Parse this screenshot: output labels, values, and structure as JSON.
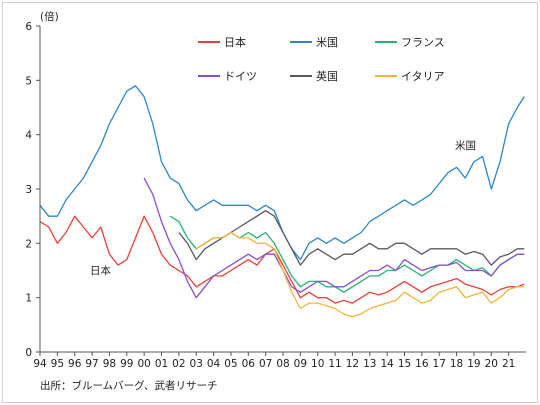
{
  "chart_data": {
    "type": "line",
    "y_unit": "(倍)",
    "ylim": [
      0,
      6
    ],
    "y_ticks": [
      "0",
      "1",
      "2",
      "3",
      "4",
      "5",
      "6"
    ],
    "x_ticks": [
      "94",
      "95",
      "96",
      "97",
      "98",
      "99",
      "00",
      "01",
      "02",
      "03",
      "04",
      "05",
      "06",
      "07",
      "08",
      "09",
      "10",
      "11",
      "12",
      "13",
      "14",
      "15",
      "16",
      "17",
      "18",
      "19",
      "20",
      "21"
    ],
    "xlim": [
      1994.0,
      2022.0
    ],
    "grid": false,
    "legend_position": "top-center",
    "source": "出所：ブルームバーグ、武者リサーチ",
    "annotations": [
      "日本",
      "米国"
    ],
    "series": [
      {
        "name": "日本",
        "color": "#e8413b",
        "x": [
          1994.0,
          1994.5,
          1995.0,
          1995.5,
          1996.0,
          1996.5,
          1997.0,
          1997.5,
          1998.0,
          1998.5,
          1999.0,
          1999.5,
          2000.0,
          2000.5,
          2001.0,
          2001.5,
          2002.0,
          2002.5,
          2003.0,
          2003.5,
          2004.0,
          2004.5,
          2005.0,
          2005.5,
          2006.0,
          2006.5,
          2007.0,
          2007.5,
          2008.0,
          2008.5,
          2009.0,
          2009.5,
          2010.0,
          2010.5,
          2011.0,
          2011.5,
          2012.0,
          2012.5,
          2013.0,
          2013.5,
          2014.0,
          2014.5,
          2015.0,
          2015.5,
          2016.0,
          2016.5,
          2017.0,
          2017.5,
          2018.0,
          2018.5,
          2019.0,
          2019.5,
          2020.0,
          2020.5,
          2021.0,
          2021.5,
          2021.9
        ],
        "values": [
          2.4,
          2.3,
          2.0,
          2.2,
          2.5,
          2.3,
          2.1,
          2.3,
          1.8,
          1.6,
          1.7,
          2.1,
          2.5,
          2.2,
          1.8,
          1.6,
          1.5,
          1.4,
          1.2,
          1.3,
          1.4,
          1.4,
          1.5,
          1.6,
          1.7,
          1.6,
          1.8,
          1.9,
          1.6,
          1.3,
          1.0,
          1.1,
          1.0,
          1.0,
          0.9,
          0.95,
          0.9,
          1.0,
          1.1,
          1.05,
          1.1,
          1.2,
          1.3,
          1.2,
          1.1,
          1.2,
          1.25,
          1.3,
          1.35,
          1.25,
          1.2,
          1.15,
          1.05,
          1.15,
          1.2,
          1.2,
          1.25
        ]
      },
      {
        "name": "米国",
        "color": "#2f86c9",
        "x": [
          1994.0,
          1994.5,
          1995.0,
          1995.5,
          1996.0,
          1996.5,
          1997.0,
          1997.5,
          1998.0,
          1998.5,
          1999.0,
          1999.5,
          2000.0,
          2000.5,
          2001.0,
          2001.5,
          2002.0,
          2002.5,
          2003.0,
          2003.5,
          2004.0,
          2004.5,
          2005.0,
          2005.5,
          2006.0,
          2006.5,
          2007.0,
          2007.5,
          2008.0,
          2008.5,
          2009.0,
          2009.5,
          2010.0,
          2010.5,
          2011.0,
          2011.5,
          2012.0,
          2012.5,
          2013.0,
          2013.5,
          2014.0,
          2014.5,
          2015.0,
          2015.5,
          2016.0,
          2016.5,
          2017.0,
          2017.5,
          2018.0,
          2018.5,
          2019.0,
          2019.5,
          2020.0,
          2020.5,
          2021.0,
          2021.5,
          2021.9
        ],
        "values": [
          2.7,
          2.5,
          2.5,
          2.8,
          3.0,
          3.2,
          3.5,
          3.8,
          4.2,
          4.5,
          4.8,
          4.9,
          4.7,
          4.2,
          3.5,
          3.2,
          3.1,
          2.8,
          2.6,
          2.7,
          2.8,
          2.7,
          2.7,
          2.7,
          2.7,
          2.6,
          2.7,
          2.6,
          2.2,
          1.9,
          1.7,
          2.0,
          2.1,
          2.0,
          2.1,
          2.0,
          2.1,
          2.2,
          2.4,
          2.5,
          2.6,
          2.7,
          2.8,
          2.7,
          2.8,
          2.9,
          3.1,
          3.3,
          3.4,
          3.2,
          3.5,
          3.6,
          3.0,
          3.5,
          4.2,
          4.5,
          4.7
        ]
      },
      {
        "name": "フランス",
        "color": "#27b36f",
        "x": [
          2001.5,
          2002.0,
          2002.5,
          2003.0,
          2003.5,
          2004.0,
          2004.5,
          2005.0,
          2005.5,
          2006.0,
          2006.5,
          2007.0,
          2007.5,
          2008.0,
          2008.5,
          2009.0,
          2009.5,
          2010.0,
          2010.5,
          2011.0,
          2011.5,
          2012.0,
          2012.5,
          2013.0,
          2013.5,
          2014.0,
          2014.5,
          2015.0,
          2015.5,
          2016.0,
          2016.5,
          2017.0,
          2017.5,
          2018.0,
          2018.5,
          2019.0,
          2019.5,
          2020.0,
          2020.5,
          2021.0,
          2021.5,
          2021.9
        ],
        "values": [
          2.5,
          2.4,
          2.1,
          1.9,
          2.0,
          2.1,
          2.1,
          2.2,
          2.1,
          2.2,
          2.1,
          2.2,
          2.0,
          1.7,
          1.4,
          1.2,
          1.3,
          1.3,
          1.2,
          1.2,
          1.1,
          1.2,
          1.3,
          1.4,
          1.4,
          1.5,
          1.5,
          1.6,
          1.5,
          1.4,
          1.5,
          1.6,
          1.6,
          1.7,
          1.6,
          1.5,
          1.55,
          1.4,
          1.6,
          1.7,
          1.8,
          1.8
        ]
      },
      {
        "name": "ドイツ",
        "color": "#8a4fc8",
        "x": [
          2000.0,
          2000.5,
          2001.0,
          2001.5,
          2002.0,
          2002.5,
          2003.0,
          2003.5,
          2004.0,
          2004.5,
          2005.0,
          2005.5,
          2006.0,
          2006.5,
          2007.0,
          2007.5,
          2008.0,
          2008.5,
          2009.0,
          2009.5,
          2010.0,
          2010.5,
          2011.0,
          2011.5,
          2012.0,
          2012.5,
          2013.0,
          2013.5,
          2014.0,
          2014.5,
          2015.0,
          2015.5,
          2016.0,
          2016.5,
          2017.0,
          2017.5,
          2018.0,
          2018.5,
          2019.0,
          2019.5,
          2020.0,
          2020.5,
          2021.0,
          2021.5,
          2021.9
        ],
        "values": [
          3.2,
          2.9,
          2.4,
          2.0,
          1.7,
          1.3,
          1.0,
          1.2,
          1.4,
          1.5,
          1.6,
          1.7,
          1.8,
          1.7,
          1.8,
          1.8,
          1.5,
          1.2,
          1.1,
          1.2,
          1.3,
          1.3,
          1.2,
          1.2,
          1.3,
          1.4,
          1.5,
          1.5,
          1.6,
          1.5,
          1.7,
          1.6,
          1.5,
          1.55,
          1.6,
          1.6,
          1.65,
          1.5,
          1.5,
          1.5,
          1.4,
          1.6,
          1.7,
          1.8,
          1.8
        ]
      },
      {
        "name": "英国",
        "color": "#595863",
        "x": [
          2002.0,
          2002.5,
          2003.0,
          2003.5,
          2004.0,
          2004.5,
          2005.0,
          2005.5,
          2006.0,
          2006.5,
          2007.0,
          2007.5,
          2008.0,
          2008.5,
          2009.0,
          2009.5,
          2010.0,
          2010.5,
          2011.0,
          2011.5,
          2012.0,
          2012.5,
          2013.0,
          2013.5,
          2014.0,
          2014.5,
          2015.0,
          2015.5,
          2016.0,
          2016.5,
          2017.0,
          2017.5,
          2018.0,
          2018.5,
          2019.0,
          2019.5,
          2020.0,
          2020.5,
          2021.0,
          2021.5,
          2021.9
        ],
        "values": [
          2.2,
          2.0,
          1.7,
          1.9,
          2.0,
          2.1,
          2.2,
          2.3,
          2.4,
          2.5,
          2.6,
          2.5,
          2.2,
          1.9,
          1.6,
          1.8,
          1.9,
          1.8,
          1.7,
          1.8,
          1.8,
          1.9,
          2.0,
          1.9,
          1.9,
          2.0,
          2.0,
          1.9,
          1.8,
          1.9,
          1.9,
          1.9,
          1.9,
          1.8,
          1.85,
          1.8,
          1.6,
          1.75,
          1.8,
          1.9,
          1.9
        ]
      },
      {
        "name": "イタリア",
        "color": "#f2b53a",
        "x": [
          2003.0,
          2003.5,
          2004.0,
          2004.5,
          2005.0,
          2005.5,
          2006.0,
          2006.5,
          2007.0,
          2007.5,
          2008.0,
          2008.5,
          2009.0,
          2009.5,
          2010.0,
          2010.5,
          2011.0,
          2011.5,
          2012.0,
          2012.5,
          2013.0,
          2013.5,
          2014.0,
          2014.5,
          2015.0,
          2015.5,
          2016.0,
          2016.5,
          2017.0,
          2017.5,
          2018.0,
          2018.5,
          2019.0,
          2019.5,
          2020.0,
          2020.5,
          2021.0,
          2021.5,
          2021.9
        ],
        "values": [
          1.9,
          2.0,
          2.1,
          2.1,
          2.2,
          2.1,
          2.1,
          2.0,
          2.0,
          1.9,
          1.5,
          1.1,
          0.8,
          0.9,
          0.9,
          0.85,
          0.8,
          0.7,
          0.65,
          0.7,
          0.8,
          0.85,
          0.9,
          0.95,
          1.1,
          1.0,
          0.9,
          0.95,
          1.1,
          1.15,
          1.2,
          1.0,
          1.05,
          1.1,
          0.9,
          1.0,
          1.15,
          1.2,
          1.2
        ]
      }
    ]
  }
}
